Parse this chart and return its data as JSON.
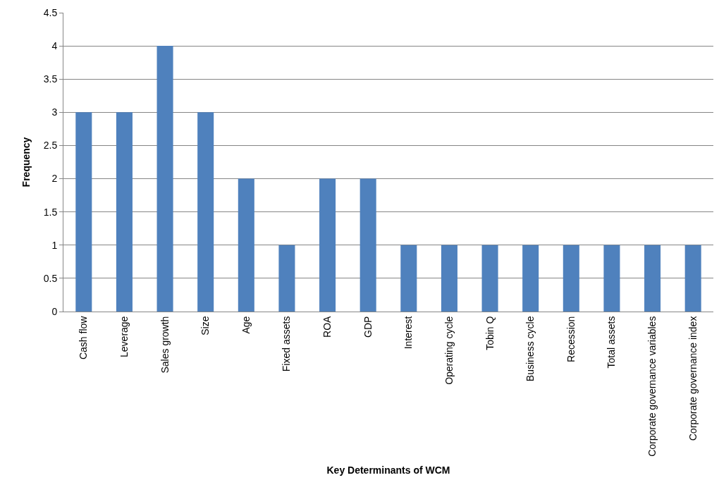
{
  "chart_data": {
    "type": "bar",
    "xlabel": "Key Determinants of WCM",
    "ylabel": "Frequency",
    "categories": [
      "Cash flow",
      "Leverage",
      "Sales growth",
      "Size",
      "Age",
      "Fixed assets",
      "ROA",
      "GDP",
      "Interest",
      "Operating cycle",
      "Tobin Q",
      "Business cycle",
      "Recession",
      "Total assets",
      "Corporate governance variables",
      "Corporate governance index"
    ],
    "values": [
      3,
      3,
      4,
      3,
      2,
      1,
      2,
      2,
      1,
      1,
      1,
      1,
      1,
      1,
      1,
      1
    ],
    "color": "#4f81bd",
    "ylim": [
      0,
      4.5
    ],
    "yticks": [
      0,
      0.5,
      1,
      1.5,
      2,
      2.5,
      3,
      3.5,
      4,
      4.5
    ],
    "grid": "y"
  }
}
